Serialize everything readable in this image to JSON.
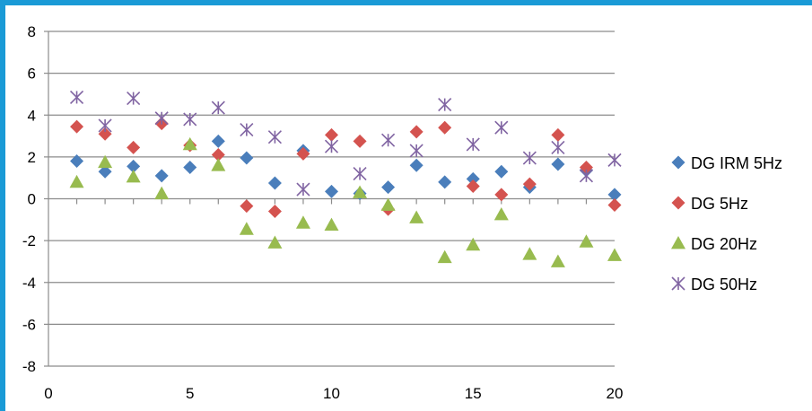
{
  "chart_data": {
    "type": "scatter",
    "xlim": [
      0,
      20
    ],
    "ylim": [
      -8,
      8
    ],
    "x_ticks": [
      0,
      5,
      10,
      15,
      20
    ],
    "y_ticks": [
      -8,
      -6,
      -4,
      -2,
      0,
      2,
      4,
      6,
      8
    ],
    "grid": "horizontal",
    "legend_position": "right",
    "x": [
      1,
      2,
      3,
      4,
      5,
      6,
      7,
      8,
      9,
      10,
      11,
      12,
      13,
      14,
      15,
      16,
      17,
      18,
      19,
      20
    ],
    "series": [
      {
        "name": "DG IRM 5Hz",
        "marker": "diamond",
        "color": "#4a7ebb",
        "values": [
          1.8,
          1.3,
          1.55,
          1.1,
          1.5,
          2.75,
          1.95,
          0.75,
          2.3,
          0.35,
          0.25,
          0.55,
          1.6,
          0.8,
          0.95,
          1.3,
          0.55,
          1.65,
          1.35,
          0.2
        ]
      },
      {
        "name": "DG 5Hz",
        "marker": "diamond",
        "color": "#d4534f",
        "values": [
          3.45,
          3.1,
          2.45,
          3.6,
          2.55,
          2.1,
          -0.35,
          -0.6,
          2.15,
          3.05,
          2.75,
          -0.5,
          3.2,
          3.4,
          0.6,
          0.2,
          0.7,
          3.05,
          1.5,
          -0.3
        ]
      },
      {
        "name": "DG 20Hz",
        "marker": "triangle",
        "color": "#98bb4f",
        "values": [
          0.8,
          1.75,
          1.05,
          0.25,
          2.6,
          1.6,
          -1.45,
          -2.1,
          -1.15,
          -1.25,
          0.3,
          -0.3,
          -0.9,
          -2.8,
          -2.2,
          -0.75,
          -2.65,
          -3.0,
          -2.05,
          -2.7
        ]
      },
      {
        "name": "DG 50Hz",
        "marker": "star",
        "color": "#8064a2",
        "values": [
          4.85,
          3.5,
          4.8,
          3.85,
          3.8,
          4.35,
          3.3,
          2.95,
          0.45,
          2.5,
          1.2,
          2.8,
          2.3,
          4.5,
          2.6,
          3.4,
          1.95,
          2.45,
          1.1,
          1.85
        ]
      }
    ]
  }
}
